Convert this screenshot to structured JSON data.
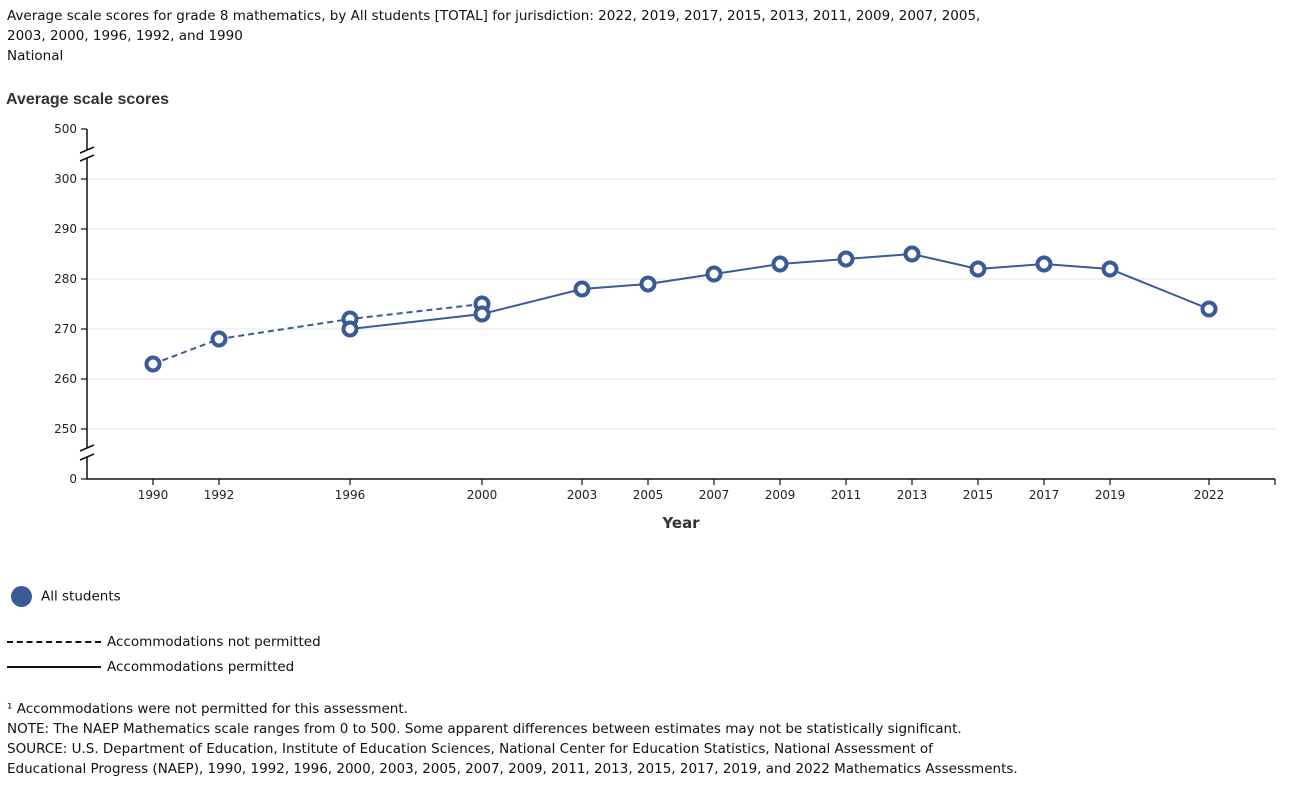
{
  "heading": {
    "line1": "Average scale scores for grade 8 mathematics, by All students [TOTAL] for jurisdiction: 2022, 2019, 2017, 2015, 2013, 2011, 2009, 2007, 2005,",
    "line2": "2003, 2000, 1996, 1992, and 1990",
    "line3": "National"
  },
  "chart_data": {
    "type": "line",
    "title": "Average scale scores",
    "xlabel": "Year",
    "ylabel": "Average scale scores",
    "y_ticks": [
      "0",
      "250",
      "260",
      "270",
      "280",
      "290",
      "300",
      "500"
    ],
    "y_axis_breaks": [
      "0-250",
      "300-500"
    ],
    "x_ticks": [
      "1990",
      "1992",
      "1996",
      "2000",
      "2003",
      "2005",
      "2007",
      "2009",
      "2011",
      "2013",
      "2015",
      "2017",
      "2019",
      "2022"
    ],
    "grid": true,
    "color": "#3a5a98",
    "series": [
      {
        "name": "All students",
        "line": "dashed",
        "legend": "Accommodations not permitted",
        "x": [
          1990,
          1992,
          1996,
          2000
        ],
        "y": [
          263,
          268,
          272,
          275
        ]
      },
      {
        "name": "All students",
        "line": "solid",
        "legend": "Accommodations permitted",
        "x": [
          1996,
          2000,
          2003,
          2005,
          2007,
          2009,
          2011,
          2013,
          2015,
          2017,
          2019,
          2022
        ],
        "y": [
          270,
          273,
          278,
          279,
          281,
          283,
          284,
          285,
          282,
          283,
          282,
          274
        ]
      }
    ]
  },
  "legend": {
    "series_label": "All students",
    "dashed_label": "Accommodations not permitted",
    "solid_label": "Accommodations permitted"
  },
  "notes": {
    "footnote": "¹ Accommodations were not permitted for this assessment.",
    "note": "NOTE: The NAEP Mathematics scale ranges from 0 to 500. Some apparent differences between estimates may not be statistically significant.",
    "source1": "SOURCE: U.S. Department of Education, Institute of Education Sciences, National Center for Education Statistics, National Assessment of",
    "source2": "Educational Progress (NAEP), 1990, 1992, 1996, 2000, 2003, 2005, 2007, 2009, 2011, 2013, 2015, 2017, 2019, and 2022 Mathematics Assessments."
  }
}
